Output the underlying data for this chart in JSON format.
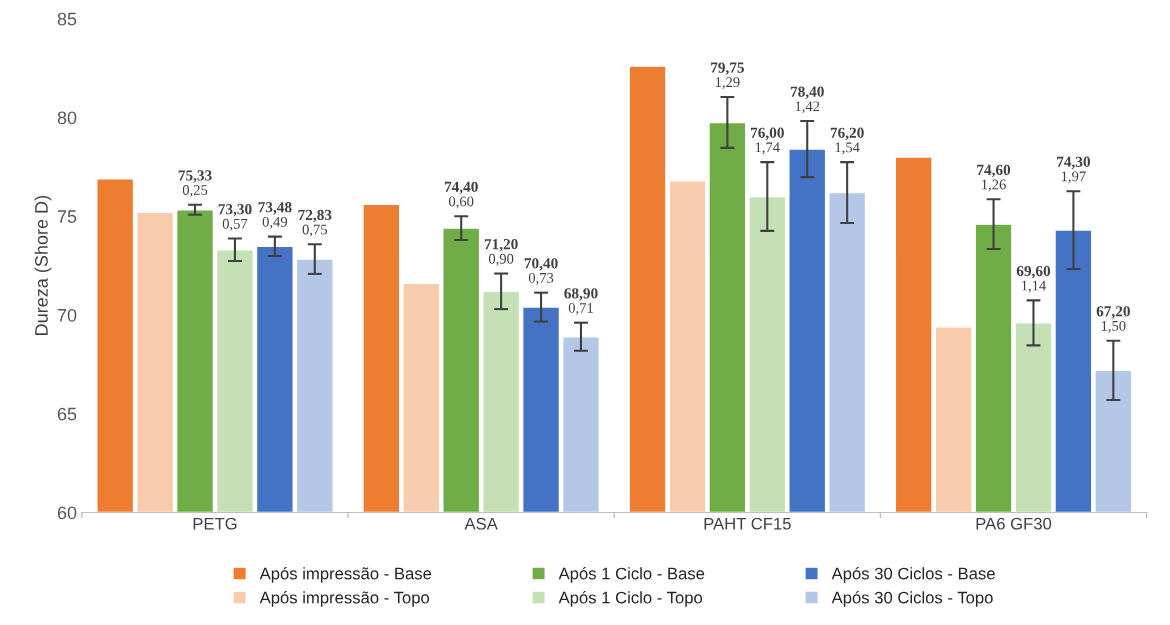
{
  "chart_data": {
    "type": "bar",
    "ylabel": "Dureza (Shore D)",
    "categories": [
      "PETG",
      "ASA",
      "PAHT CF15",
      "PA6 GF30"
    ],
    "ylim": [
      60,
      85
    ],
    "yticks": [
      60,
      65,
      70,
      75,
      80,
      85
    ],
    "grid": false,
    "legend": "bottom",
    "series": [
      {
        "name": "Após impressão - Base",
        "color": "#ed7d31",
        "values": [
          76.9,
          75.6,
          82.6,
          78.0
        ]
      },
      {
        "name": "Após impressão - Topo",
        "color": "#f8cbad",
        "values": [
          75.2,
          71.6,
          76.8,
          69.4
        ]
      },
      {
        "name": "Após 1 Ciclo - Base",
        "color": "#70ad47",
        "values": [
          75.33,
          74.4,
          79.75,
          74.6
        ],
        "errors": [
          0.25,
          0.6,
          1.29,
          1.26
        ],
        "value_labels": [
          "75,33\n0,25",
          "74,40\n0,60",
          "79,75\n1,29",
          "74,60\n1,26"
        ]
      },
      {
        "name": "Após 1 Ciclo - Topo",
        "color": "#c5e0b4",
        "values": [
          73.3,
          71.2,
          76.0,
          69.6
        ],
        "errors": [
          0.57,
          0.9,
          1.74,
          1.14
        ],
        "value_labels": [
          "73,30\n0,57",
          "71,20\n0,90",
          "76,00\n1,74",
          "69,60\n1,14"
        ]
      },
      {
        "name": "Após 30 Ciclos - Base",
        "color": "#4472c4",
        "values": [
          73.48,
          70.4,
          78.4,
          74.3
        ],
        "errors": [
          0.49,
          0.73,
          1.42,
          1.97
        ],
        "value_labels": [
          "73,48\n0,49",
          "70,40\n0,73",
          "78,40\n1,42",
          "74,30\n1,97"
        ]
      },
      {
        "name": "Após 30 Ciclos - Topo",
        "color": "#b4c7e7",
        "values": [
          72.83,
          68.9,
          76.2,
          67.2
        ],
        "errors": [
          0.75,
          0.71,
          1.54,
          1.5
        ],
        "value_labels": [
          "72,83\n0,75",
          "68,90\n0,71",
          "76,20\n1,54",
          "67,20\n1,50"
        ]
      }
    ]
  }
}
